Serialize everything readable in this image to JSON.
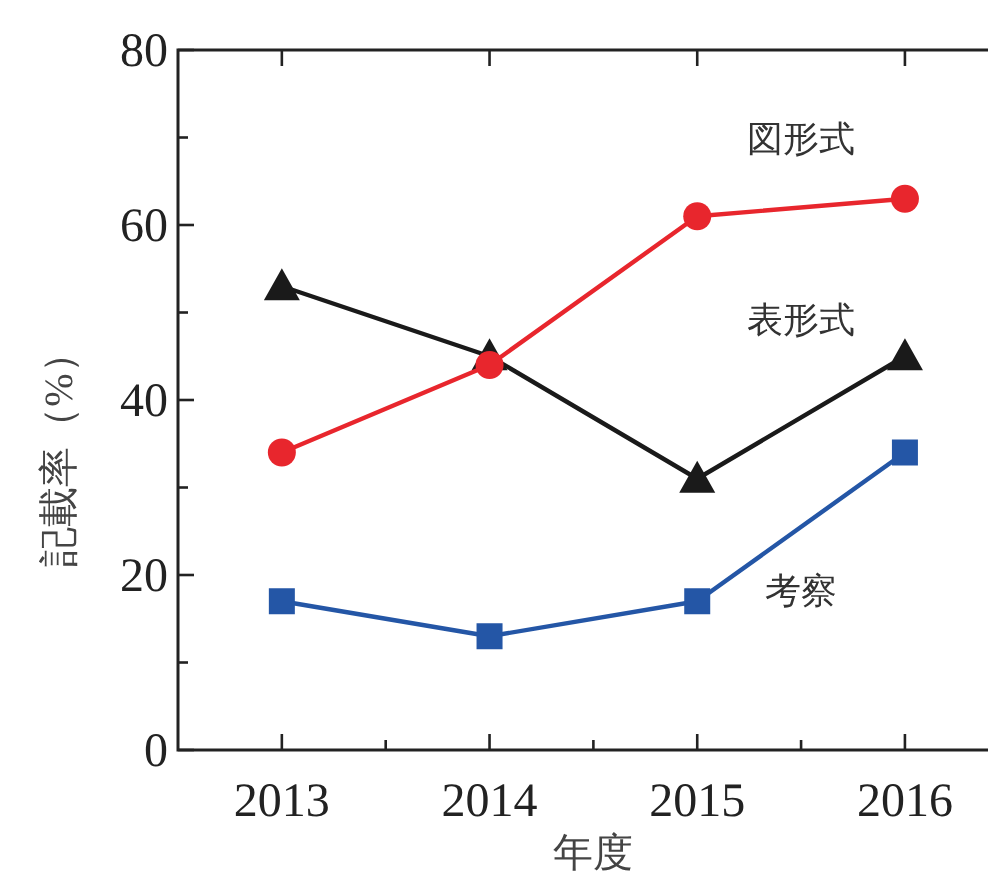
{
  "chart_data": {
    "type": "line",
    "xlabel": "年度",
    "ylabel": "記載率（%）",
    "x": [
      2013,
      2014,
      2015,
      2016
    ],
    "xlim": [
      2012.5,
      2016.4
    ],
    "xticks": [
      2013,
      {
        "value": 2013.5,
        "label": null
      },
      2014,
      {
        "value": 2014.5,
        "label": null
      },
      2015,
      {
        "value": 2015.5,
        "label": null
      },
      2016
    ],
    "ylim": [
      0,
      80
    ],
    "yticks": [
      0,
      {
        "value": 10,
        "label": null
      },
      20,
      {
        "value": 30,
        "label": null
      },
      40,
      {
        "value": 50,
        "label": null
      },
      60,
      {
        "value": 70,
        "label": null
      },
      80
    ],
    "grid": false,
    "line_style": "solid",
    "series": [
      {
        "name": "図形式",
        "color": "#e8262d",
        "marker": "circle",
        "values": [
          34,
          44,
          61,
          63
        ]
      },
      {
        "name": "表形式",
        "color": "#1a1a1a",
        "marker": "triangle",
        "values": [
          53,
          45,
          31,
          45
        ]
      },
      {
        "name": "考察",
        "color": "#2456a6",
        "marker": "square",
        "values": [
          17,
          13,
          17,
          34
        ]
      }
    ]
  }
}
